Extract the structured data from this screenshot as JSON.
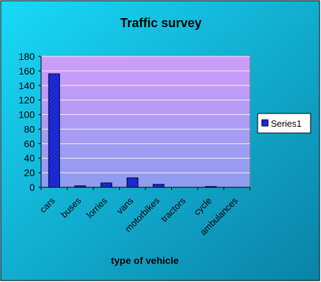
{
  "chart_data": {
    "type": "bar",
    "title": "Traffic survey",
    "xlabel": "type of vehicle",
    "ylabel": "",
    "ylim": [
      0,
      180
    ],
    "yticks": [
      0,
      20,
      40,
      60,
      80,
      100,
      120,
      140,
      160,
      180
    ],
    "categories": [
      "cars",
      "buses",
      "lorries",
      "vans",
      "motorbikes",
      "tractors",
      "cycle",
      "ambulances"
    ],
    "series": [
      {
        "name": "Series1",
        "values": [
          156,
          2,
          6,
          13,
          4,
          0,
          1,
          0
        ]
      }
    ],
    "grid": true,
    "legend": "right",
    "colors": {
      "background_top": "#19d9f8",
      "background_bottom": "#0a82a8",
      "plot_top": "#cf9cf8",
      "plot_bottom": "#8e9cf0",
      "bar_fill": "#1e2ee0",
      "bar_stroke": "#000030"
    }
  }
}
